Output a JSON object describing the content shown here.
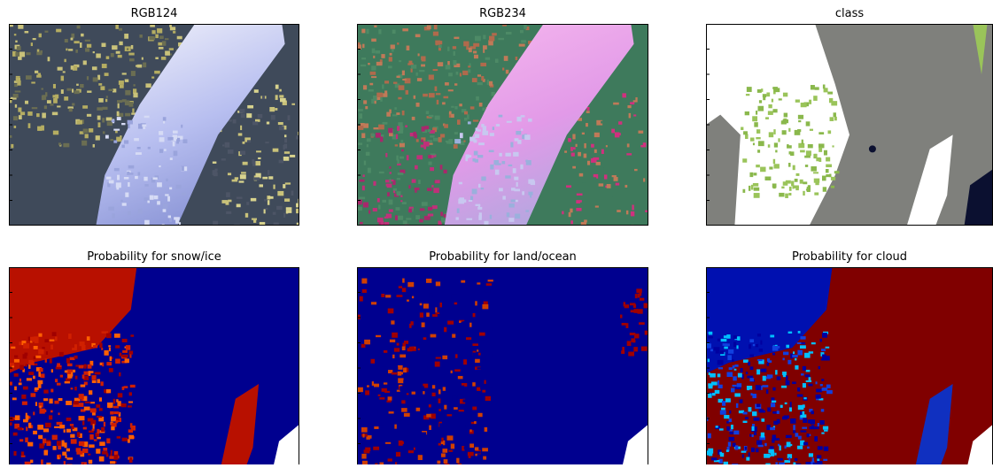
{
  "panels": [
    {
      "title": "RGB124"
    },
    {
      "title": "RGB234"
    },
    {
      "title": "class"
    },
    {
      "title": "Probability for snow/ice"
    },
    {
      "title": "Probability for land/ocean"
    },
    {
      "title": "Probability for cloud"
    }
  ]
}
